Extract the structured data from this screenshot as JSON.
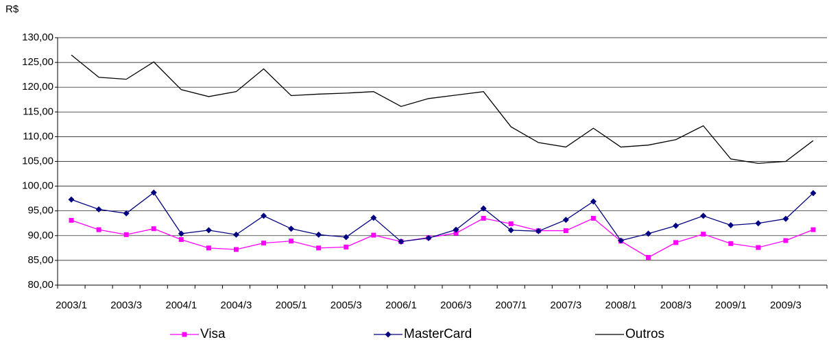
{
  "chart_data": {
    "type": "line",
    "y_label": "R$",
    "categories": [
      "2003/1",
      null,
      "2003/3",
      null,
      "2004/1",
      null,
      "2004/3",
      null,
      "2005/1",
      null,
      "2005/3",
      null,
      "2006/1",
      null,
      "2006/3",
      null,
      "2007/1",
      null,
      "2007/3",
      null,
      "2008/1",
      null,
      "2008/3",
      null,
      "2009/1",
      null,
      "2009/3",
      null
    ],
    "series": [
      {
        "name": "Visa",
        "color": "#ff00ff",
        "marker": "square",
        "values": [
          93.1,
          91.2,
          90.2,
          91.4,
          89.2,
          87.5,
          87.2,
          88.5,
          88.9,
          87.5,
          87.7,
          90.1,
          88.8,
          89.6,
          90.5,
          93.5,
          92.4,
          91.0,
          91.0,
          93.5,
          88.9,
          85.6,
          88.6,
          90.3,
          88.4,
          87.6,
          89.0,
          91.2
        ]
      },
      {
        "name": "MasterCard",
        "color": "#000080",
        "marker": "diamond",
        "values": [
          97.3,
          95.3,
          94.5,
          98.7,
          90.4,
          91.1,
          90.2,
          94.0,
          91.4,
          90.2,
          89.7,
          93.6,
          88.8,
          89.5,
          91.2,
          95.5,
          91.1,
          90.9,
          93.2,
          96.9,
          89.0,
          90.4,
          92.0,
          94.0,
          92.1,
          92.5,
          93.4,
          98.6
        ]
      },
      {
        "name": "Outros",
        "color": "#000000",
        "marker": "none",
        "values": [
          126.5,
          122.0,
          121.6,
          125.1,
          119.5,
          118.1,
          119.1,
          123.7,
          118.3,
          118.6,
          118.8,
          119.1,
          116.1,
          117.7,
          118.4,
          119.1,
          112.0,
          108.8,
          107.9,
          111.7,
          107.9,
          108.3,
          109.4,
          112.2,
          105.5,
          104.6,
          105.0,
          109.2
        ]
      }
    ],
    "ylim": [
      80,
      130
    ],
    "yticks": [
      {
        "value": 80,
        "label": "80,00"
      },
      {
        "value": 85,
        "label": "85,00"
      },
      {
        "value": 90,
        "label": "90,00"
      },
      {
        "value": 95,
        "label": "95,00"
      },
      {
        "value": 100,
        "label": "100,00"
      },
      {
        "value": 105,
        "label": "105,00"
      },
      {
        "value": 110,
        "label": "110,00"
      },
      {
        "value": 115,
        "label": "115,00"
      },
      {
        "value": 120,
        "label": "120,00"
      },
      {
        "value": 125,
        "label": "125,00"
      },
      {
        "value": 130,
        "label": "130,00"
      }
    ],
    "grid": true,
    "legend": "bottom"
  }
}
